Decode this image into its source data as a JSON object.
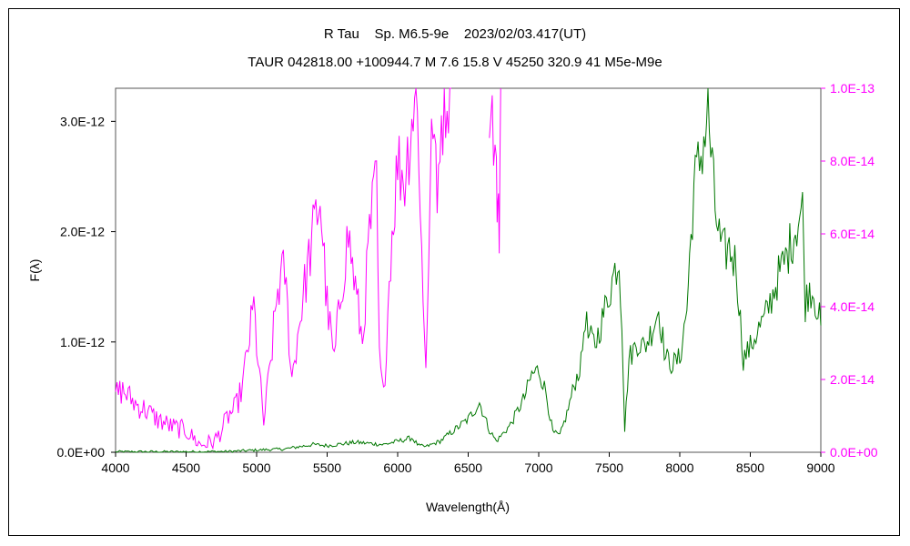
{
  "header": {
    "title": "R Tau    Sp. M6.5-9e    2023/02/03.417(UT)",
    "subtitle": "TAUR 042818.00 +100944.7 M 7.6 15.8 V 45250 320.9 41 M5e-M9e"
  },
  "chart_data": {
    "type": "line",
    "title": "R Tau    Sp. M6.5-9e    2023/02/03.417(UT)",
    "subtitle": "TAUR 042818.00 +100944.7 M 7.6 15.8 V 45250 320.9 41 M5e-M9e",
    "xlabel": "Wavelength(Å)",
    "ylabel": "F(λ)",
    "xlim": [
      4000,
      9000
    ],
    "ylim_left": [
      0,
      3.3e-12
    ],
    "ylim_right": [
      0,
      1e-13
    ],
    "x_ticks": [
      "4000",
      "4500",
      "5000",
      "5500",
      "6000",
      "6500",
      "7000",
      "7500",
      "8000",
      "8500",
      "9000"
    ],
    "y_ticks_left": [
      "0.0E+00",
      "1.0E-12",
      "2.0E-12",
      "3.0E-12"
    ],
    "y_ticks_right": [
      "0.0E+00",
      "2.0E-14",
      "4.0E-14",
      "6.0E-14",
      "8.0E-14",
      "1.0E-13"
    ],
    "series": [
      {
        "axis": "left",
        "color": "#007700",
        "x": [
          4000,
          4500,
          4800,
          5000,
          5200,
          5400,
          5500,
          5700,
          5900,
          6000,
          6100,
          6150,
          6200,
          6300,
          6400,
          6500,
          6580,
          6650,
          6700,
          6800,
          6900,
          6950,
          7000,
          7050,
          7100,
          7150,
          7200,
          7250,
          7300,
          7330,
          7350,
          7400,
          7450,
          7500,
          7550,
          7570,
          7590,
          7610,
          7640,
          7700,
          7750,
          7800,
          7850,
          7900,
          7950,
          8000,
          8050,
          8100,
          8150,
          8180,
          8200,
          8250,
          8300,
          8350,
          8400,
          8450,
          8500,
          8550,
          8600,
          8650,
          8700,
          8750,
          8800,
          8850,
          8870,
          8890,
          8920,
          8950,
          9000
        ],
        "values": [
          5e-15,
          5e-15,
          7e-15,
          2e-14,
          3e-14,
          7e-14,
          6e-14,
          9e-14,
          7e-14,
          1e-13,
          1.3e-13,
          6e-14,
          5e-14,
          1e-13,
          2e-13,
          3e-13,
          4.5e-13,
          2e-13,
          1e-13,
          2.5e-13,
          5e-13,
          7e-13,
          7.5e-13,
          5.5e-13,
          1.8e-13,
          1.5e-13,
          3.5e-13,
          6e-13,
          8e-13,
          1.25e-12,
          1.05e-12,
          9.8e-13,
          1.2e-12,
          1.45e-12,
          1.7e-12,
          1.75e-12,
          1.2e-12,
          2e-13,
          8.5e-13,
          1e-12,
          9.5e-13,
          1.1e-12,
          1.3e-12,
          8.5e-13,
          8e-13,
          8.5e-13,
          1.3e-12,
          2.4e-12,
          2.7e-12,
          2.9e-12,
          3.1e-12,
          2.2e-12,
          1.8e-12,
          1.85e-12,
          1.7e-12,
          8.5e-13,
          9.5e-13,
          1.1e-12,
          1.2e-12,
          1.4e-12,
          1.6e-12,
          1.75e-12,
          1.95e-12,
          2.15e-12,
          2.2e-12,
          1.35e-12,
          1.5e-12,
          1.45e-12,
          1.15e-12
        ]
      },
      {
        "axis": "right",
        "color": "#ff00ff",
        "x": [
          4000,
          4050,
          4100,
          4150,
          4200,
          4300,
          4400,
          4500,
          4550,
          4600,
          4700,
          4750,
          4800,
          4850,
          4900,
          4950,
          4980,
          5000,
          5050,
          5100,
          5150,
          5200,
          5250,
          5300,
          5350,
          5400,
          5450,
          5500,
          5550,
          5600,
          5650,
          5700,
          5750,
          5800,
          5850,
          5870,
          5900,
          5950,
          6000,
          6050,
          6080,
          6100,
          6130,
          6150,
          6180,
          6200,
          6230,
          6250,
          6280,
          6300,
          6350,
          6380
        ],
        "values": [
          1.6e-14,
          1.7e-14,
          1.5e-14,
          1.3e-14,
          1.2e-14,
          9e-15,
          7e-15,
          6e-15,
          4e-15,
          2e-15,
          3e-15,
          6e-15,
          1e-14,
          1.2e-14,
          1.8e-14,
          3.2e-14,
          4e-14,
          3e-14,
          8e-15,
          2.5e-14,
          4.5e-14,
          5e-14,
          2e-14,
          3.5e-14,
          4.8e-14,
          6e-14,
          7e-14,
          4e-14,
          2.5e-14,
          4.5e-14,
          6e-14,
          4.5e-14,
          3e-14,
          6e-14,
          7.5e-14,
          2.5e-14,
          1.5e-14,
          5.5e-14,
          8e-14,
          7.5e-14,
          8.5e-14,
          9.2e-14,
          1e-13,
          8.5e-14,
          4e-14,
          2.5e-14,
          7e-14,
          9.5e-14,
          6.5e-14,
          9e-14,
          1e-13,
          1e-13
        ]
      },
      {
        "axis": "right",
        "color": "#ff00ff",
        "x": [
          6650,
          6680,
          6700,
          6710,
          6720,
          6730
        ],
        "values": [
          1e-13,
          9e-14,
          7.5e-14,
          6.5e-14,
          6.2e-14,
          1e-13
        ]
      }
    ],
    "grid": false,
    "legend": "none"
  }
}
